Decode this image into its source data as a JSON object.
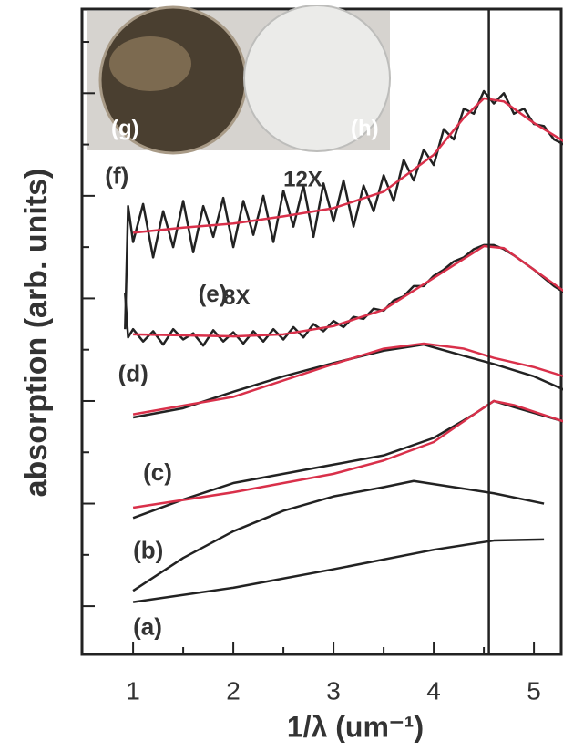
{
  "chart_data": {
    "type": "line",
    "ylabel": "absorption (arb. units)",
    "xlabel": "1/λ (um⁻¹)",
    "xlim": [
      0.49,
      5.29
    ],
    "ylim": [
      -0.47,
      5.82
    ],
    "xticks": [
      1,
      2,
      3,
      4,
      5
    ],
    "xminor": [
      1.5,
      2.5,
      3.5,
      4.5
    ],
    "yticks": [
      0,
      1,
      2,
      3,
      4,
      5
    ],
    "yminor": [
      0.5,
      1.5,
      2.5,
      3.5,
      4.5,
      5.5
    ],
    "vline": 4.55,
    "inset_labels": [
      "(g)",
      "(h)"
    ],
    "annotations": [
      {
        "text": "12X",
        "x": 2.5,
        "y": 4.15
      },
      {
        "text": "8X",
        "x": 1.9,
        "y": 3.0
      }
    ],
    "series": [
      {
        "name": "(a)",
        "color": "#222222",
        "label_at": [
          1.0,
          -0.22
        ],
        "x": [
          1,
          2,
          3,
          4,
          4.6,
          5.1
        ],
        "values": [
          0.04,
          0.18,
          0.36,
          0.55,
          0.64,
          0.65
        ]
      },
      {
        "name": "(b)",
        "color": "#222222",
        "label_at": [
          1.0,
          0.53
        ],
        "x": [
          1,
          1.5,
          2,
          2.5,
          3,
          3.5,
          3.8,
          4.2,
          4.6,
          5.1
        ],
        "values": [
          0.15,
          0.47,
          0.73,
          0.93,
          1.07,
          1.16,
          1.22,
          1.16,
          1.1,
          1.0
        ]
      },
      {
        "name": "(c)",
        "color": "#222222",
        "label_at": [
          1.1,
          1.29
        ],
        "x": [
          1,
          1.5,
          2,
          2.5,
          3,
          3.5,
          4,
          4.4,
          4.6,
          4.8,
          5.3
        ],
        "values": [
          0.86,
          1.04,
          1.2,
          1.29,
          1.38,
          1.47,
          1.64,
          1.87,
          2.0,
          1.94,
          1.8
        ],
        "fit": {
          "color": "#d9304a",
          "x": [
            1,
            2,
            3,
            3.5,
            4,
            4.4,
            4.6,
            4.8,
            5.3
          ],
          "values": [
            0.96,
            1.11,
            1.29,
            1.42,
            1.6,
            1.87,
            2.0,
            1.96,
            1.8
          ]
        }
      },
      {
        "name": "(d)",
        "color": "#222222",
        "label_at": [
          0.85,
          2.25
        ],
        "x": [
          1,
          1.5,
          2,
          2.5,
          3,
          3.5,
          3.9,
          4.3,
          4.6,
          5,
          5.3
        ],
        "values": [
          1.84,
          1.93,
          2.09,
          2.24,
          2.37,
          2.49,
          2.55,
          2.44,
          2.36,
          2.24,
          2.11
        ],
        "fit": {
          "color": "#d9304a",
          "x": [
            1,
            2,
            3,
            3.5,
            3.9,
            4.3,
            4.6,
            5,
            5.3
          ],
          "values": [
            1.87,
            2.04,
            2.36,
            2.51,
            2.56,
            2.51,
            2.42,
            2.33,
            2.24
          ]
        }
      },
      {
        "name": "(e)",
        "color": "#222222",
        "label_at": [
          1.65,
          3.03
        ],
        "x": [
          0.92,
          0.95,
          1.0,
          1.1,
          1.2,
          1.3,
          1.4,
          1.5,
          1.6,
          1.7,
          1.8,
          1.9,
          2.0,
          2.1,
          2.2,
          2.3,
          2.4,
          2.5,
          2.6,
          2.7,
          2.8,
          2.9,
          3.0,
          3.1,
          3.2,
          3.3,
          3.4,
          3.5,
          3.6,
          3.7,
          3.8,
          3.9,
          4.0,
          4.1,
          4.2,
          4.3,
          4.4,
          4.5,
          4.6,
          4.7,
          4.8,
          4.9,
          5.0,
          5.1,
          5.2,
          5.3
        ],
        "values": [
          3.05,
          2.62,
          2.7,
          2.58,
          2.68,
          2.55,
          2.7,
          2.6,
          2.66,
          2.54,
          2.69,
          2.58,
          2.67,
          2.56,
          2.68,
          2.58,
          2.7,
          2.6,
          2.72,
          2.62,
          2.75,
          2.68,
          2.78,
          2.72,
          2.82,
          2.8,
          2.9,
          2.88,
          2.98,
          3.02,
          3.12,
          3.12,
          3.22,
          3.28,
          3.36,
          3.4,
          3.48,
          3.52,
          3.52,
          3.48,
          3.42,
          3.35,
          3.28,
          3.2,
          3.12,
          3.06
        ],
        "fit": {
          "color": "#d9304a",
          "x": [
            1,
            2,
            2.5,
            3,
            3.5,
            4,
            4.5,
            4.7,
            5.3
          ],
          "values": [
            2.65,
            2.63,
            2.65,
            2.73,
            2.89,
            3.2,
            3.51,
            3.49,
            3.07
          ]
        }
      },
      {
        "name": "(f)",
        "color": "#222222",
        "label_at": [
          0.72,
          4.18
        ],
        "x": [
          0.92,
          0.95,
          1.0,
          1.1,
          1.2,
          1.3,
          1.4,
          1.5,
          1.6,
          1.7,
          1.8,
          1.9,
          2.0,
          2.1,
          2.2,
          2.3,
          2.4,
          2.5,
          2.6,
          2.7,
          2.8,
          2.9,
          3.0,
          3.1,
          3.2,
          3.3,
          3.4,
          3.5,
          3.6,
          3.7,
          3.8,
          3.9,
          4.0,
          4.1,
          4.2,
          4.3,
          4.4,
          4.5,
          4.6,
          4.7,
          4.8,
          4.9,
          5.0,
          5.1,
          5.2,
          5.3
        ],
        "values": [
          2.7,
          3.9,
          3.55,
          3.92,
          3.4,
          3.85,
          3.5,
          3.95,
          3.45,
          3.9,
          3.6,
          3.98,
          3.5,
          3.95,
          3.62,
          4.0,
          3.55,
          4.05,
          3.7,
          4.1,
          3.6,
          4.12,
          3.75,
          4.15,
          3.7,
          4.1,
          3.85,
          4.2,
          3.95,
          4.35,
          4.15,
          4.45,
          4.3,
          4.65,
          4.55,
          4.85,
          4.8,
          5.02,
          4.9,
          5.0,
          4.8,
          4.85,
          4.7,
          4.68,
          4.55,
          4.5
        ],
        "fit": {
          "color": "#d9304a",
          "x": [
            1,
            1.5,
            2,
            2.5,
            3,
            3.5,
            4,
            4.3,
            4.5,
            4.7,
            5,
            5.3
          ],
          "values": [
            3.64,
            3.69,
            3.73,
            3.8,
            3.88,
            4.04,
            4.4,
            4.76,
            4.95,
            4.92,
            4.71,
            4.53
          ]
        }
      }
    ]
  }
}
